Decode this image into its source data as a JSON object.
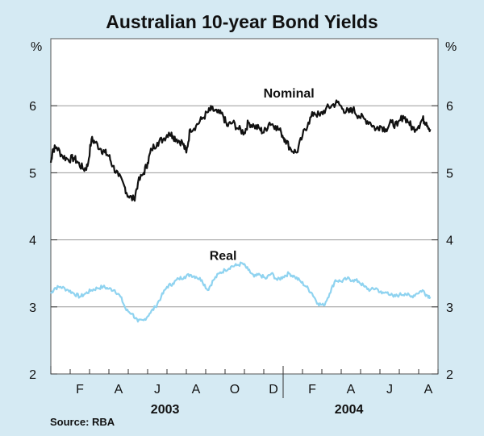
{
  "chart_data": {
    "type": "line",
    "title": "Australian 10-year Bond Yields",
    "ylabel_left": "%",
    "ylabel_right": "%",
    "ylim": [
      2,
      7
    ],
    "yticks": [
      2,
      3,
      4,
      5,
      6
    ],
    "x_month_ticks": [
      "F",
      "A",
      "J",
      "A",
      "O",
      "D",
      "F",
      "A",
      "J",
      "A"
    ],
    "x_years": [
      "2003",
      "2004"
    ],
    "source": "Source: RBA",
    "series": [
      {
        "name": "Nominal",
        "color": "#111111",
        "x": [
          0,
          0.1,
          0.3,
          0.6,
          0.9,
          1.2,
          1.4,
          1.7,
          1.9,
          2.1,
          2.3,
          2.6,
          2.8,
          3.0,
          3.2,
          3.5,
          3.8,
          4.0,
          4.3,
          4.5,
          4.8,
          5.0,
          5.2,
          5.5,
          5.8,
          6.1,
          6.3,
          6.5,
          6.8,
          7.0,
          7.2,
          7.5,
          7.8,
          8.1,
          8.3,
          8.6,
          8.9,
          9.1,
          9.4,
          9.7,
          10.0,
          10.2,
          10.5,
          10.8,
          11.0,
          11.3,
          11.6,
          11.9,
          12.1,
          12.4,
          12.7,
          13.0,
          13.3,
          13.6,
          13.9,
          14.2,
          14.5,
          14.8,
          15.1,
          15.4,
          15.6,
          15.9,
          16.2,
          16.5,
          16.8,
          17.0,
          17.3,
          17.6,
          17.9,
          18.2,
          18.5,
          18.7,
          19.0,
          19.2,
          19.4,
          19.6
        ],
        "values": [
          5.15,
          5.35,
          5.38,
          5.25,
          5.2,
          5.22,
          5.15,
          5.05,
          5.1,
          5.5,
          5.45,
          5.35,
          5.3,
          5.25,
          5.1,
          4.95,
          4.8,
          4.65,
          4.6,
          4.85,
          5.0,
          5.15,
          5.35,
          5.45,
          5.5,
          5.6,
          5.55,
          5.5,
          5.45,
          5.3,
          5.65,
          5.7,
          5.8,
          5.9,
          5.95,
          5.9,
          5.85,
          5.7,
          5.75,
          5.65,
          5.6,
          5.75,
          5.7,
          5.65,
          5.6,
          5.75,
          5.7,
          5.6,
          5.5,
          5.35,
          5.3,
          5.55,
          5.75,
          5.9,
          5.85,
          5.95,
          6.0,
          6.05,
          5.95,
          5.9,
          5.95,
          5.85,
          5.8,
          5.75,
          5.65,
          5.7,
          5.65,
          5.75,
          5.7,
          5.85,
          5.75,
          5.65,
          5.7,
          5.8,
          5.75,
          5.65
        ]
      },
      {
        "name": "Real",
        "color": "#8fd3f0",
        "x": [
          0,
          0.2,
          0.5,
          0.9,
          1.2,
          1.5,
          1.8,
          2.1,
          2.4,
          2.7,
          3.0,
          3.3,
          3.6,
          3.9,
          4.2,
          4.5,
          4.8,
          5.1,
          5.4,
          5.7,
          6.0,
          6.3,
          6.6,
          6.9,
          7.2,
          7.5,
          7.8,
          8.1,
          8.4,
          8.7,
          9.0,
          9.3,
          9.6,
          9.9,
          10.2,
          10.5,
          10.8,
          11.1,
          11.4,
          11.7,
          12.0,
          12.3,
          12.6,
          12.9,
          13.2,
          13.5,
          13.8,
          14.1,
          14.4,
          14.7,
          15.0,
          15.3,
          15.6,
          15.9,
          16.2,
          16.5,
          16.8,
          17.1,
          17.4,
          17.7,
          18.0,
          18.3,
          18.6,
          18.9,
          19.2,
          19.4,
          19.6
        ],
        "values": [
          3.2,
          3.28,
          3.3,
          3.25,
          3.2,
          3.15,
          3.2,
          3.25,
          3.28,
          3.3,
          3.27,
          3.25,
          3.15,
          2.95,
          2.9,
          2.78,
          2.8,
          2.9,
          3.0,
          3.15,
          3.3,
          3.35,
          3.42,
          3.45,
          3.48,
          3.45,
          3.4,
          3.25,
          3.4,
          3.5,
          3.55,
          3.6,
          3.62,
          3.65,
          3.55,
          3.45,
          3.48,
          3.42,
          3.5,
          3.4,
          3.45,
          3.5,
          3.45,
          3.38,
          3.3,
          3.2,
          3.05,
          3.02,
          3.2,
          3.4,
          3.38,
          3.42,
          3.4,
          3.38,
          3.3,
          3.25,
          3.28,
          3.2,
          3.22,
          3.15,
          3.18,
          3.2,
          3.15,
          3.2,
          3.25,
          3.18,
          3.15
        ]
      }
    ]
  }
}
